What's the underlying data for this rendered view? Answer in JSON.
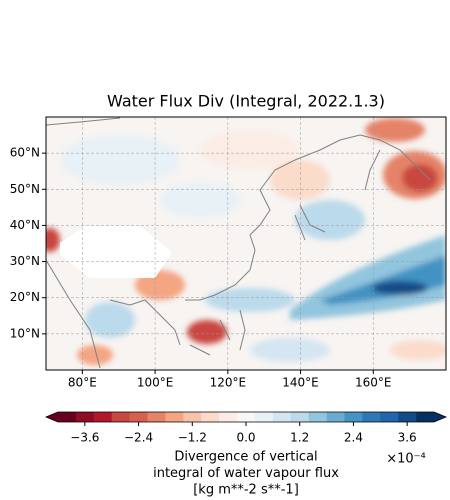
{
  "map": {
    "title": "Water Flux Div (Integral, 2022.1.3)",
    "lonlim": [
      70,
      180
    ],
    "latlim": [
      0,
      70
    ],
    "lon_ticks": [
      {
        "value": 80,
        "label": "80°E"
      },
      {
        "value": 100,
        "label": "100°E"
      },
      {
        "value": 120,
        "label": "120°E"
      },
      {
        "value": 140,
        "label": "140°E"
      },
      {
        "value": 160,
        "label": "160°E"
      }
    ],
    "lat_ticks": [
      {
        "value": 10,
        "label": "10°N"
      },
      {
        "value": 20,
        "label": "20°N"
      },
      {
        "value": 30,
        "label": "30°N"
      },
      {
        "value": 40,
        "label": "40°N"
      },
      {
        "value": 50,
        "label": "50°N"
      },
      {
        "value": 60,
        "label": "60°N"
      }
    ],
    "colorbar": {
      "levels": [
        -4.2,
        -3.8,
        -3.4,
        -3.0,
        -2.6,
        -2.2,
        -1.8,
        -1.4,
        -1.0,
        -0.6,
        -0.2,
        0.2,
        0.6,
        1.0,
        1.4,
        1.8,
        2.2,
        2.6,
        3.0,
        3.4,
        3.8,
        4.2
      ],
      "colors": [
        "#67001f",
        "#8e0d25",
        "#b2182b",
        "#c94741",
        "#d6604d",
        "#e58368",
        "#f4a582",
        "#f8c3a8",
        "#fbdccb",
        "#fbede5",
        "#f7f7f7",
        "#e8f1f6",
        "#d4e6f1",
        "#bbdaeb",
        "#92c5de",
        "#6aacd0",
        "#4393c3",
        "#2f78b5",
        "#2166ac",
        "#134b87",
        "#053061"
      ],
      "ticks": [
        {
          "value": -3.6,
          "label": "−3.6"
        },
        {
          "value": -2.4,
          "label": "−2.4"
        },
        {
          "value": -1.2,
          "label": "−1.2"
        },
        {
          "value": 0,
          "label": "0.0"
        },
        1.2,
        2.4,
        3.6
      ],
      "label": [
        "Divergence of vertical",
        "integral of water vapour flux",
        "[kg m**-2 s**-1]"
      ],
      "offset": "×10⁻⁴"
    }
  }
}
